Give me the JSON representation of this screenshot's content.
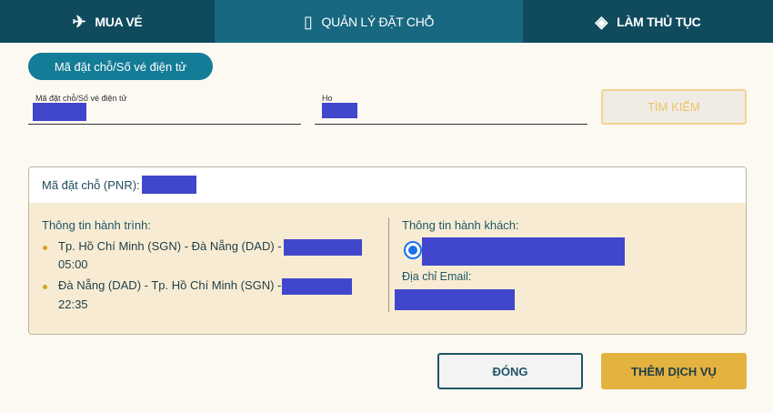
{
  "tabs": [
    {
      "label": "MUA VÉ",
      "icon": "airplane-icon",
      "active": false
    },
    {
      "label": "QUẢN LÝ ĐẶT CHỖ",
      "icon": "booklet-icon",
      "active": true
    },
    {
      "label": "LÀM THỦ TỤC",
      "icon": "ticket-icon",
      "active": false
    }
  ],
  "search_type_label": "Mã đặt chỗ/Số vé điện tử",
  "fields": {
    "booking_label": "Mã đặt chỗ/Số vé điện tử",
    "lastname_label": "Ho"
  },
  "search_button": "TÌM KIẾM",
  "panel": {
    "pnr_label": "Mã đặt chỗ (PNR):",
    "itinerary_title": "Thông tin hành trình:",
    "itinerary": [
      {
        "route": "Tp. Hồ Chí Minh (SGN) - Đà Nẵng (DAD) -",
        "time": "05:00"
      },
      {
        "route": "Đà Nẵng (DAD) - Tp. Hồ Chí Minh (SGN) -",
        "time": "22:35"
      }
    ],
    "passenger_title": "Thông tin hành khách:",
    "email_label": "Địa chỉ Email:"
  },
  "buttons": {
    "close": "ĐÓNG",
    "add_service": "THÊM DỊCH VỤ"
  },
  "colors": {
    "header": "#0f4b5d",
    "active_tab": "#176880",
    "accent": "#e4b23e",
    "redaction": "#4047cc"
  }
}
